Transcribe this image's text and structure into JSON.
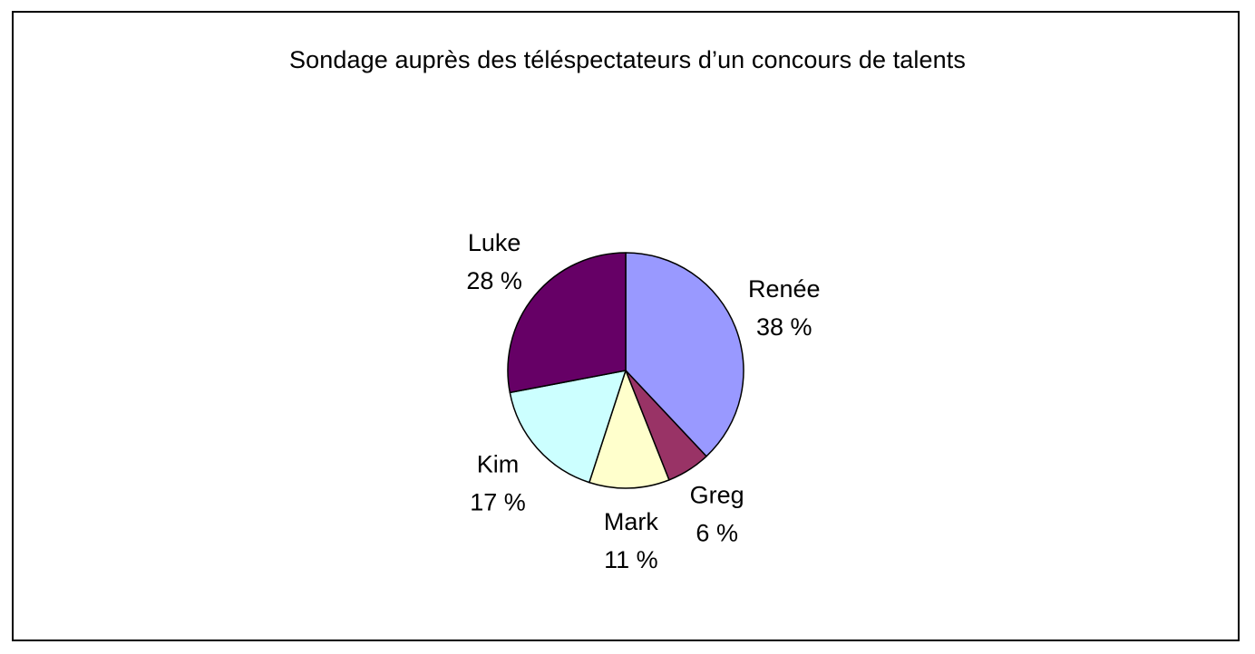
{
  "chart_data": {
    "type": "pie",
    "title": "Sondage auprès des téléspectateurs d’un concours de talents",
    "start_angle_deg": 0,
    "direction": "clockwise",
    "slices": [
      {
        "name": "Renée",
        "value": 38,
        "value_label": "38 %",
        "color": "#9999FF"
      },
      {
        "name": "Greg",
        "value": 6,
        "value_label": "6 %",
        "color": "#993366"
      },
      {
        "name": "Mark",
        "value": 11,
        "value_label": "11 %",
        "color": "#FFFFCC"
      },
      {
        "name": "Kim",
        "value": 17,
        "value_label": "17 %",
        "color": "#CCFFFF"
      },
      {
        "name": "Luke",
        "value": 28,
        "value_label": "28 %",
        "color": "#660066"
      }
    ],
    "legend": "none"
  }
}
